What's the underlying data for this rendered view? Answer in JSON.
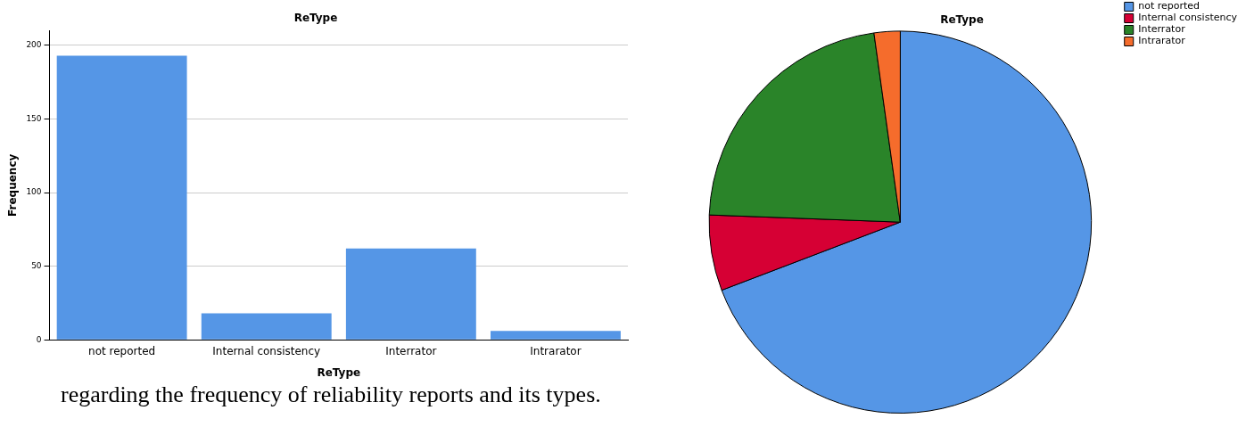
{
  "chart_data": [
    {
      "type": "bar",
      "title": "ReType",
      "xlabel": "ReType",
      "ylabel": "Frequency",
      "categories": [
        "not reported",
        "Internal consistency",
        "Interrator",
        "Intrarator"
      ],
      "values": [
        193,
        18,
        62,
        6
      ],
      "color": "#5596e6",
      "ylim": [
        0,
        210
      ],
      "yticks": [
        0,
        50,
        100,
        150,
        200
      ],
      "grid": "y",
      "legend": false,
      "annotations": [
        "regarding the frequency of reliability reports and its types."
      ]
    },
    {
      "type": "pie",
      "title": "ReType",
      "categories": [
        "not reported",
        "Internal consistency",
        "Interrator",
        "Intrarator"
      ],
      "values": [
        69.2,
        6.4,
        22.2,
        2.2
      ],
      "colors": [
        "#5596e6",
        "#d60034",
        "#2a8429",
        "#f56c2c"
      ],
      "legend": "top right"
    }
  ]
}
